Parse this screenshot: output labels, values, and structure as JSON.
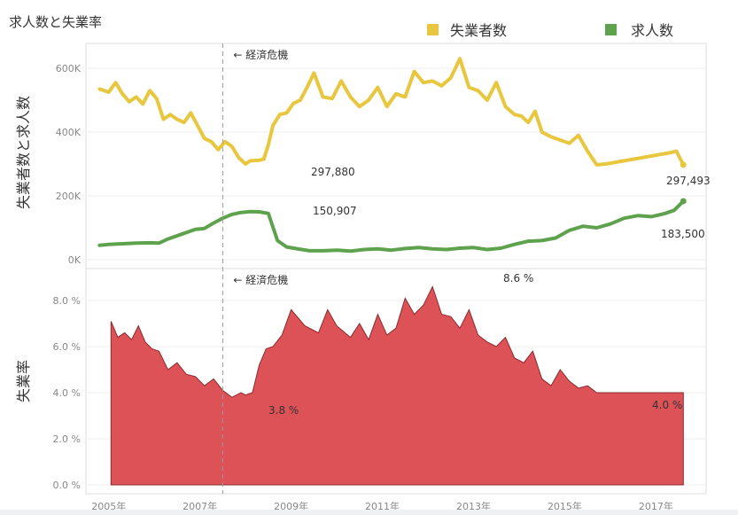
{
  "title": "求人数と失業率",
  "legend": [
    {
      "label": "失業者数",
      "color": "#e8c63e"
    },
    {
      "label": "求人数",
      "color": "#5ea24e"
    }
  ],
  "upper": {
    "ylabel": "失業者数と求人数",
    "ylim": [
      0,
      650000
    ],
    "yticks": [
      "0K",
      "200K",
      "400K",
      "600K"
    ]
  },
  "lower": {
    "ylabel": "失業率",
    "ylim": [
      0,
      9
    ],
    "yticks": [
      "0.0 %",
      "2.0 %",
      "4.0 %",
      "6.0 %",
      "8.0 %"
    ]
  },
  "xticks": [
    "2005年",
    "2007年",
    "2009年",
    "2011年",
    "2013年",
    "2015年",
    "2017年"
  ],
  "crisis": {
    "label": "経済危機",
    "x": 2007.5
  },
  "annotations": {
    "unemployed_min": "297,880",
    "unemployed_end": "297,493",
    "openings_peak": "150,907",
    "openings_end": "183,500",
    "rate_min": "3.8 %",
    "rate_max": "8.6 %",
    "rate_end": "4.0 %"
  },
  "chart_data": {
    "type": "line",
    "xlim": [
      2004.5,
      2018.1
    ],
    "series": [
      {
        "name": "失業者数",
        "color": "#e8c63e",
        "x": [
          2004.8,
          2005.0,
          2005.15,
          2005.3,
          2005.45,
          2005.6,
          2005.75,
          2005.9,
          2006.05,
          2006.2,
          2006.35,
          2006.5,
          2006.65,
          2006.8,
          2006.95,
          2007.1,
          2007.25,
          2007.4,
          2007.55,
          2007.7,
          2007.85,
          2008.0,
          2008.1,
          2008.3,
          2008.4,
          2008.5,
          2008.6,
          2008.75,
          2008.9,
          2009.05,
          2009.2,
          2009.35,
          2009.5,
          2009.7,
          2009.9,
          2010.1,
          2010.3,
          2010.5,
          2010.7,
          2010.9,
          2011.1,
          2011.3,
          2011.5,
          2011.7,
          2011.9,
          2012.1,
          2012.3,
          2012.5,
          2012.7,
          2012.9,
          2013.1,
          2013.3,
          2013.5,
          2013.7,
          2013.9,
          2014.05,
          2014.2,
          2014.35,
          2014.5,
          2014.7,
          2014.9,
          2015.1,
          2015.3,
          2015.5,
          2015.7,
          2015.9,
          2016.1,
          2016.3,
          2016.5,
          2016.7,
          2016.9,
          2017.1,
          2017.3,
          2017.45,
          2017.6
        ],
        "y": [
          535000,
          525000,
          555000,
          520000,
          495000,
          510000,
          488000,
          530000,
          505000,
          440000,
          455000,
          440000,
          430000,
          460000,
          420000,
          380000,
          370000,
          345000,
          370000,
          355000,
          320000,
          300000,
          310000,
          312000,
          315000,
          360000,
          420000,
          455000,
          460000,
          490000,
          500000,
          540000,
          585000,
          510000,
          505000,
          560000,
          510000,
          480000,
          500000,
          540000,
          480000,
          520000,
          510000,
          590000,
          555000,
          560000,
          545000,
          570000,
          630000,
          540000,
          530000,
          500000,
          555000,
          480000,
          455000,
          450000,
          430000,
          465000,
          400000,
          385000,
          375000,
          365000,
          390000,
          340000,
          297493,
          300000,
          305000,
          310000,
          315000,
          320000,
          325000,
          330000,
          335000,
          340000,
          297493
        ]
      },
      {
        "name": "求人数",
        "color": "#5ea24e",
        "x": [
          2004.8,
          2005.0,
          2005.3,
          2005.6,
          2005.9,
          2006.1,
          2006.3,
          2006.6,
          2006.9,
          2007.1,
          2007.3,
          2007.5,
          2007.7,
          2007.9,
          2008.1,
          2008.3,
          2008.5,
          2008.7,
          2008.9,
          2009.1,
          2009.4,
          2009.7,
          2010.0,
          2010.3,
          2010.6,
          2010.9,
          2011.2,
          2011.5,
          2011.8,
          2012.1,
          2012.4,
          2012.7,
          2013.0,
          2013.3,
          2013.6,
          2013.9,
          2014.2,
          2014.5,
          2014.8,
          2015.1,
          2015.4,
          2015.7,
          2016.0,
          2016.3,
          2016.6,
          2016.9,
          2017.2,
          2017.4,
          2017.6
        ],
        "y": [
          45000,
          48000,
          50000,
          52000,
          53000,
          52000,
          65000,
          80000,
          95000,
          98000,
          115000,
          130000,
          142000,
          148000,
          150907,
          150000,
          145000,
          60000,
          40000,
          35000,
          28000,
          28000,
          30000,
          27000,
          32000,
          34000,
          30000,
          35000,
          38000,
          34000,
          32000,
          36000,
          38000,
          32000,
          36000,
          48000,
          58000,
          60000,
          68000,
          92000,
          105000,
          100000,
          112000,
          130000,
          138000,
          135000,
          145000,
          155000,
          183500
        ]
      },
      {
        "name": "失業率",
        "type": "area",
        "color": "#dd5257",
        "x": [
          2005.05,
          2005.2,
          2005.35,
          2005.5,
          2005.65,
          2005.8,
          2005.95,
          2006.1,
          2006.3,
          2006.5,
          2006.7,
          2006.9,
          2007.1,
          2007.3,
          2007.5,
          2007.7,
          2007.9,
          2008.0,
          2008.15,
          2008.3,
          2008.45,
          2008.6,
          2008.8,
          2009.0,
          2009.3,
          2009.6,
          2009.8,
          2010.0,
          2010.3,
          2010.5,
          2010.7,
          2010.9,
          2011.1,
          2011.3,
          2011.5,
          2011.7,
          2011.9,
          2012.1,
          2012.3,
          2012.5,
          2012.7,
          2012.9,
          2013.1,
          2013.3,
          2013.5,
          2013.7,
          2013.9,
          2014.1,
          2014.3,
          2014.5,
          2014.7,
          2014.9,
          2015.1,
          2015.3,
          2015.5,
          2015.7,
          2015.9,
          2016.1,
          2016.3,
          2016.5,
          2016.7,
          2016.9,
          2017.1,
          2017.3,
          2017.5,
          2017.6
        ],
        "y": [
          7.1,
          6.4,
          6.6,
          6.3,
          6.9,
          6.2,
          5.9,
          5.8,
          5.0,
          5.3,
          4.8,
          4.7,
          4.3,
          4.6,
          4.1,
          3.8,
          4.0,
          3.9,
          4.0,
          5.2,
          5.9,
          6.0,
          6.5,
          7.6,
          6.9,
          6.6,
          7.6,
          6.9,
          6.4,
          7.0,
          6.3,
          7.4,
          6.5,
          6.8,
          8.1,
          7.4,
          7.8,
          8.6,
          7.4,
          7.3,
          6.8,
          7.6,
          6.5,
          6.2,
          6.0,
          6.4,
          5.5,
          5.3,
          5.8,
          4.6,
          4.3,
          5.0,
          4.5,
          4.2,
          4.3,
          4.0,
          4.0,
          4.0,
          4.0,
          4.0,
          4.0,
          4.0,
          4.0,
          4.0,
          4.0,
          4.0
        ]
      }
    ]
  }
}
